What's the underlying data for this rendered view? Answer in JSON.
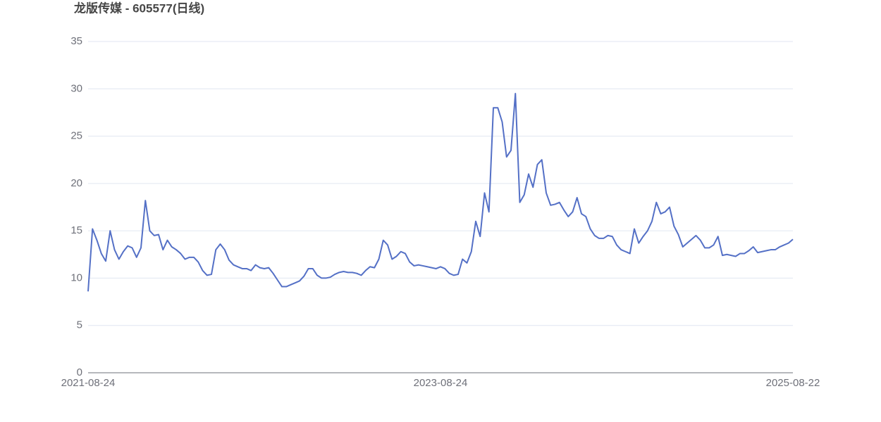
{
  "chart_data": {
    "type": "line",
    "title": "龙版传媒 - 605577(日线)",
    "color": "#5470c6",
    "grid": true,
    "ylim": [
      0,
      35
    ],
    "yticks": [
      0,
      5,
      10,
      15,
      20,
      25,
      30,
      35
    ],
    "categories": [
      "2021-08-24",
      null,
      null,
      null,
      null,
      null,
      null,
      null,
      null,
      null,
      null,
      null,
      null,
      null,
      null,
      null,
      null,
      null,
      null,
      null,
      null,
      null,
      null,
      null,
      null,
      null,
      null,
      null,
      null,
      null,
      null,
      null,
      null,
      null,
      null,
      null,
      null,
      null,
      null,
      null,
      null,
      null,
      null,
      null,
      null,
      null,
      null,
      null,
      null,
      null,
      null,
      null,
      null,
      null,
      null,
      null,
      null,
      null,
      null,
      null,
      null,
      null,
      null,
      null,
      null,
      null,
      null,
      null,
      null,
      null,
      null,
      null,
      null,
      null,
      null,
      null,
      null,
      null,
      null,
      null,
      "2023-08-24",
      null,
      null,
      null,
      null,
      null,
      null,
      null,
      null,
      null,
      null,
      null,
      null,
      null,
      null,
      null,
      null,
      null,
      null,
      null,
      null,
      null,
      null,
      null,
      null,
      null,
      null,
      null,
      null,
      null,
      null,
      null,
      null,
      null,
      null,
      null,
      null,
      null,
      null,
      null,
      null,
      null,
      null,
      null,
      null,
      null,
      null,
      null,
      null,
      null,
      null,
      null,
      null,
      null,
      null,
      null,
      null,
      null,
      null,
      null,
      null,
      null,
      null,
      null,
      null,
      null,
      null,
      null,
      null,
      null,
      null,
      null,
      null,
      null,
      null,
      null,
      null,
      null,
      null,
      null,
      "2025-08-22"
    ],
    "values": [
      8.6,
      15.2,
      14.0,
      12.6,
      11.8,
      15.0,
      13.0,
      12.0,
      12.8,
      13.4,
      13.2,
      12.2,
      13.2,
      18.2,
      15.0,
      14.5,
      14.6,
      13.0,
      14.0,
      13.3,
      13.0,
      12.6,
      12.0,
      12.2,
      12.2,
      11.7,
      10.8,
      10.3,
      10.4,
      13.0,
      13.6,
      13.0,
      11.9,
      11.4,
      11.2,
      11.0,
      11.0,
      10.8,
      11.4,
      11.1,
      11.0,
      11.1,
      10.5,
      9.8,
      9.1,
      9.1,
      9.3,
      9.5,
      9.7,
      10.2,
      11.0,
      11.0,
      10.3,
      10.0,
      10.0,
      10.1,
      10.4,
      10.6,
      10.7,
      10.6,
      10.6,
      10.5,
      10.3,
      10.8,
      11.2,
      11.1,
      12.0,
      14.0,
      13.5,
      12.0,
      12.3,
      12.8,
      12.6,
      11.7,
      11.3,
      11.4,
      11.3,
      11.2,
      11.1,
      11.0,
      11.2,
      11.0,
      10.5,
      10.3,
      10.4,
      12.0,
      11.6,
      12.8,
      16.0,
      14.4,
      19.0,
      17.0,
      28.0,
      28.0,
      26.5,
      22.8,
      23.5,
      29.5,
      18.0,
      18.8,
      21.0,
      19.6,
      22.0,
      22.5,
      19.0,
      17.7,
      17.8,
      18.0,
      17.2,
      16.5,
      17.0,
      18.5,
      16.8,
      16.5,
      15.2,
      14.5,
      14.2,
      14.2,
      14.5,
      14.4,
      13.5,
      13.0,
      12.8,
      12.6,
      15.2,
      13.7,
      14.4,
      15.0,
      16.0,
      18.0,
      16.8,
      17.0,
      17.5,
      15.5,
      14.6,
      13.3,
      13.7,
      14.1,
      14.5,
      14.0,
      13.2,
      13.2,
      13.5,
      14.4,
      12.4,
      12.5,
      12.4,
      12.3,
      12.6,
      12.6,
      12.9,
      13.3,
      12.7,
      12.8,
      12.9,
      13.0,
      13.0,
      13.3,
      13.5,
      13.7,
      14.1
    ]
  }
}
